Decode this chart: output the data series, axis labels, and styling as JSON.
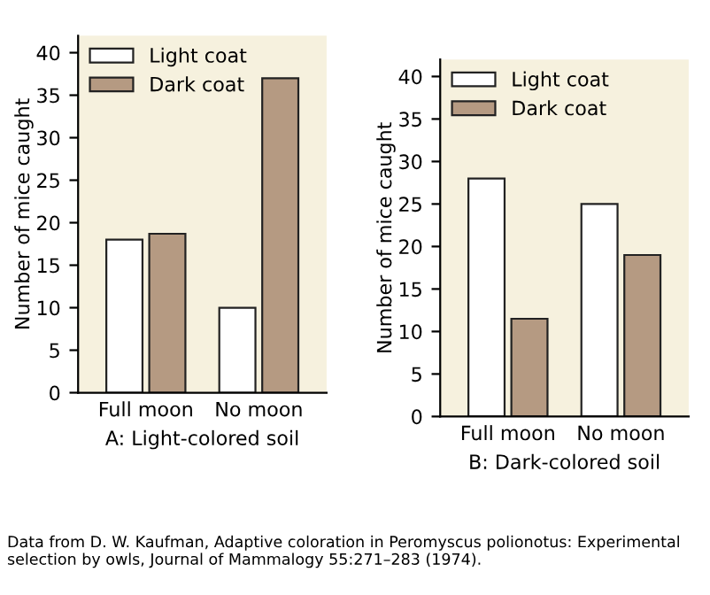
{
  "chart_data": [
    {
      "type": "bar",
      "xlabel": "A: Light-colored soil",
      "ylabel": "Number of mice caught",
      "categories": [
        "Full moon",
        "No moon"
      ],
      "series": [
        {
          "name": "Light coat",
          "color": "#ffffff",
          "values": [
            18,
            10
          ]
        },
        {
          "name": "Dark coat",
          "color": "#b59a82",
          "values": [
            18.7,
            37
          ]
        }
      ],
      "ylim": [
        0,
        42
      ],
      "yticks": [
        0,
        5,
        10,
        15,
        20,
        25,
        30,
        35,
        40
      ],
      "legend": "top left",
      "grid": false,
      "annotations": [
        "Data from D. W. Kaufman, Adaptive coloration in Peromyscus polionotus: Experimental selection by owls, Journal of Mammalogy 55:271–283 (1974)."
      ]
    },
    {
      "type": "bar",
      "xlabel": "B: Dark-colored soil",
      "ylabel": "Number of mice caught",
      "categories": [
        "Full moon",
        "No moon"
      ],
      "series": [
        {
          "name": "Light coat",
          "color": "#ffffff",
          "values": [
            28,
            25
          ]
        },
        {
          "name": "Dark coat",
          "color": "#b59a82",
          "values": [
            11.5,
            19
          ]
        }
      ],
      "ylim": [
        0,
        42
      ],
      "yticks": [
        0,
        5,
        10,
        15,
        20,
        25,
        30,
        35,
        40
      ],
      "legend": "top left",
      "grid": false
    }
  ]
}
